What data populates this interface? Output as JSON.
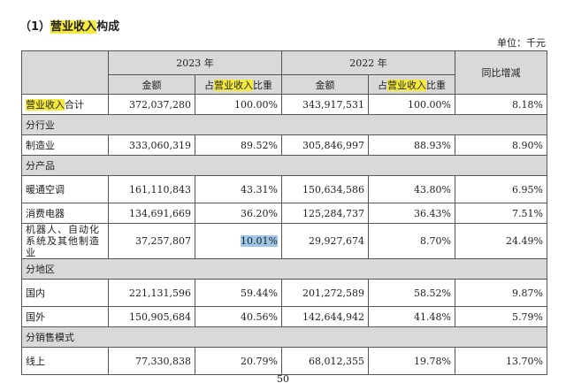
{
  "title": {
    "prefix": "（1）",
    "highlight": "营业收入",
    "suffix": "构成"
  },
  "unit": "单位：千元",
  "header": {
    "year1": "2023 年",
    "year2": "2022 年",
    "change": "同比增减",
    "amount1": "金额",
    "share1": {
      "pre": "占",
      "hl": "营业收入",
      "post": "比重"
    },
    "amount2": "金额",
    "share2": {
      "pre": "占",
      "hl": "营业收入",
      "post": "比重"
    }
  },
  "total_row": {
    "label_hl": "营业收入",
    "label_rest": "合计",
    "a1": "372,037,280",
    "s1": "100.00%",
    "a2": "343,917,531",
    "s2": "100.00%",
    "chg": "8.18%"
  },
  "sections": {
    "industry": "分行业",
    "product": "分产品",
    "region": "分地区",
    "channel": "分销售模式"
  },
  "rows": {
    "manufacturing": {
      "label": "制造业",
      "a1": "333,060,319",
      "s1": "89.52%",
      "a2": "305,846,997",
      "s2": "88.93%",
      "chg": "8.90%"
    },
    "hvac": {
      "label": "暖通空调",
      "a1": "161,110,843",
      "s1": "43.31%",
      "a2": "150,634,586",
      "s2": "43.80%",
      "chg": "6.95%"
    },
    "consumer": {
      "label": "消费电器",
      "a1": "134,691,669",
      "s1": "36.20%",
      "a2": "125,284,737",
      "s2": "36.43%",
      "chg": "7.51%"
    },
    "robotics": {
      "label": "机器人、自动化系统及其他制造业",
      "a1": "37,257,807",
      "s1": "10.01%",
      "a2": "29,927,674",
      "s2": "8.70%",
      "chg": "24.49%"
    },
    "domestic": {
      "label": "国内",
      "a1": "221,131,596",
      "s1": "59.44%",
      "a2": "201,272,589",
      "s2": "58.52%",
      "chg": "9.87%"
    },
    "overseas": {
      "label": "国外",
      "a1": "150,905,684",
      "s1": "40.56%",
      "a2": "142,644,942",
      "s2": "41.48%",
      "chg": "5.79%"
    },
    "online": {
      "label": "线上",
      "a1": "77,330,838",
      "s1": "20.79%",
      "a2": "68,012,355",
      "s2": "19.78%",
      "chg": "13.70%"
    }
  },
  "page_number": "50"
}
